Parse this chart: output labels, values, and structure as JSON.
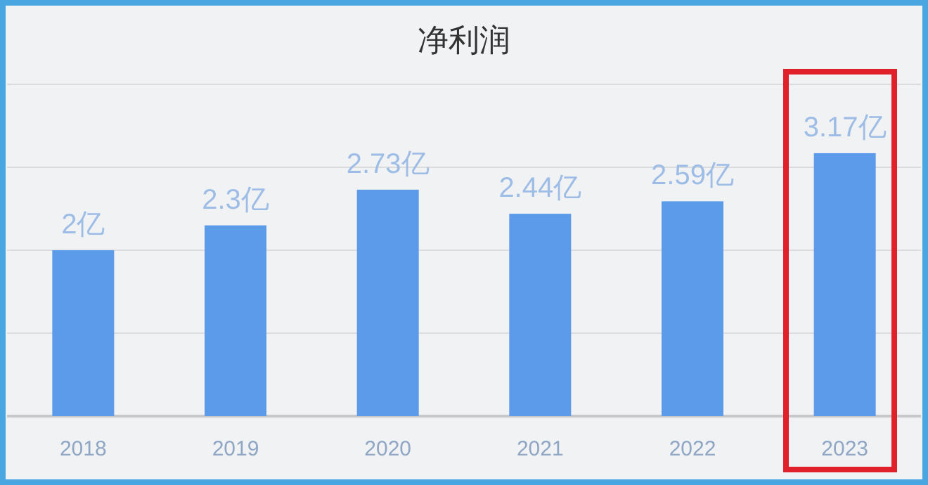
{
  "chart_data": {
    "type": "bar",
    "title": "净利润",
    "categories": [
      "2018",
      "2019",
      "2020",
      "2021",
      "2022",
      "2023"
    ],
    "values": [
      2,
      2.3,
      2.73,
      2.44,
      2.59,
      3.17
    ],
    "value_labels": [
      "2亿",
      "2.3亿",
      "2.73亿",
      "2.44亿",
      "2.59亿",
      "3.17亿"
    ],
    "color": "#5b9bea",
    "ylim": [
      0,
      4
    ],
    "yticks": [
      {
        "value": 0,
        "label": null
      },
      {
        "value": 1,
        "label": null
      },
      {
        "value": 2,
        "label": null
      },
      {
        "value": 3,
        "label": null
      },
      {
        "value": 4,
        "label": null
      }
    ],
    "grid": "y"
  }
}
